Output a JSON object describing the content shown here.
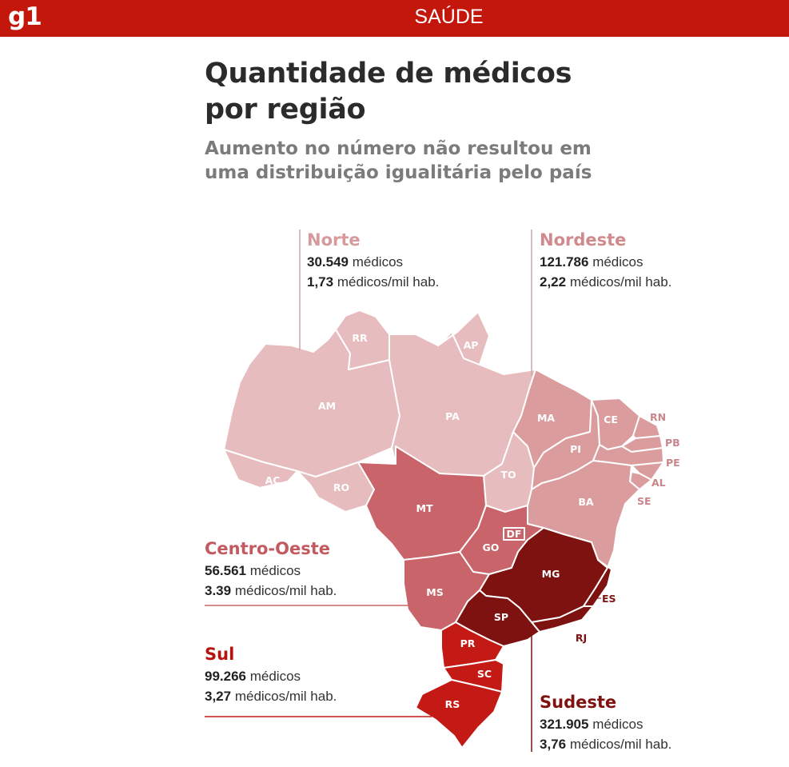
{
  "header": {
    "logo": "g1",
    "section": "SAÚDE"
  },
  "title_line1": "Quantidade de médicos",
  "title_line2": "por região",
  "subtitle_line1": "Aumento no número não resultou em",
  "subtitle_line2": "uma distribuição igualitária pelo país",
  "regions": [
    {
      "name": "Norte",
      "doctors": "30.549",
      "doctors_label": "médicos",
      "rate": "1,73",
      "rate_label": "médicos/mil hab.",
      "color": "#e7bcbe"
    },
    {
      "name": "Nordeste",
      "doctors": "121.786",
      "doctors_label": "médicos",
      "rate": "2,22",
      "rate_label": "médicos/mil hab.",
      "color": "#db9c9e"
    },
    {
      "name": "Centro-Oeste",
      "doctors": "56.561",
      "doctors_label": "médicos",
      "rate": "3.39",
      "rate_label": "médicos/mil hab.",
      "color": "#c9656a"
    },
    {
      "name": "Sul",
      "doctors": "99.266",
      "doctors_label": "médicos",
      "rate": "3,27",
      "rate_label": "médicos/mil hab.",
      "color": "#c41a15"
    },
    {
      "name": "Sudeste",
      "doctors": "321.905",
      "doctors_label": "médicos",
      "rate": "3,76",
      "rate_label": "médicos/mil hab.",
      "color": "#7d1210"
    }
  ],
  "states": {
    "RR": "RR",
    "AP": "AP",
    "AM": "AM",
    "PA": "PA",
    "AC": "AC",
    "RO": "RO",
    "TO": "TO",
    "MA": "MA",
    "CE": "CE",
    "RN": "RN",
    "PB": "PB",
    "PI": "PI",
    "PE": "PE",
    "AL": "AL",
    "SE": "SE",
    "BA": "BA",
    "MT": "MT",
    "GO": "GO",
    "DF": "DF",
    "MS": "MS",
    "MG": "MG",
    "ES": "ES",
    "SP": "SP",
    "RJ": "RJ",
    "PR": "PR",
    "SC": "SC",
    "RS": "RS"
  }
}
